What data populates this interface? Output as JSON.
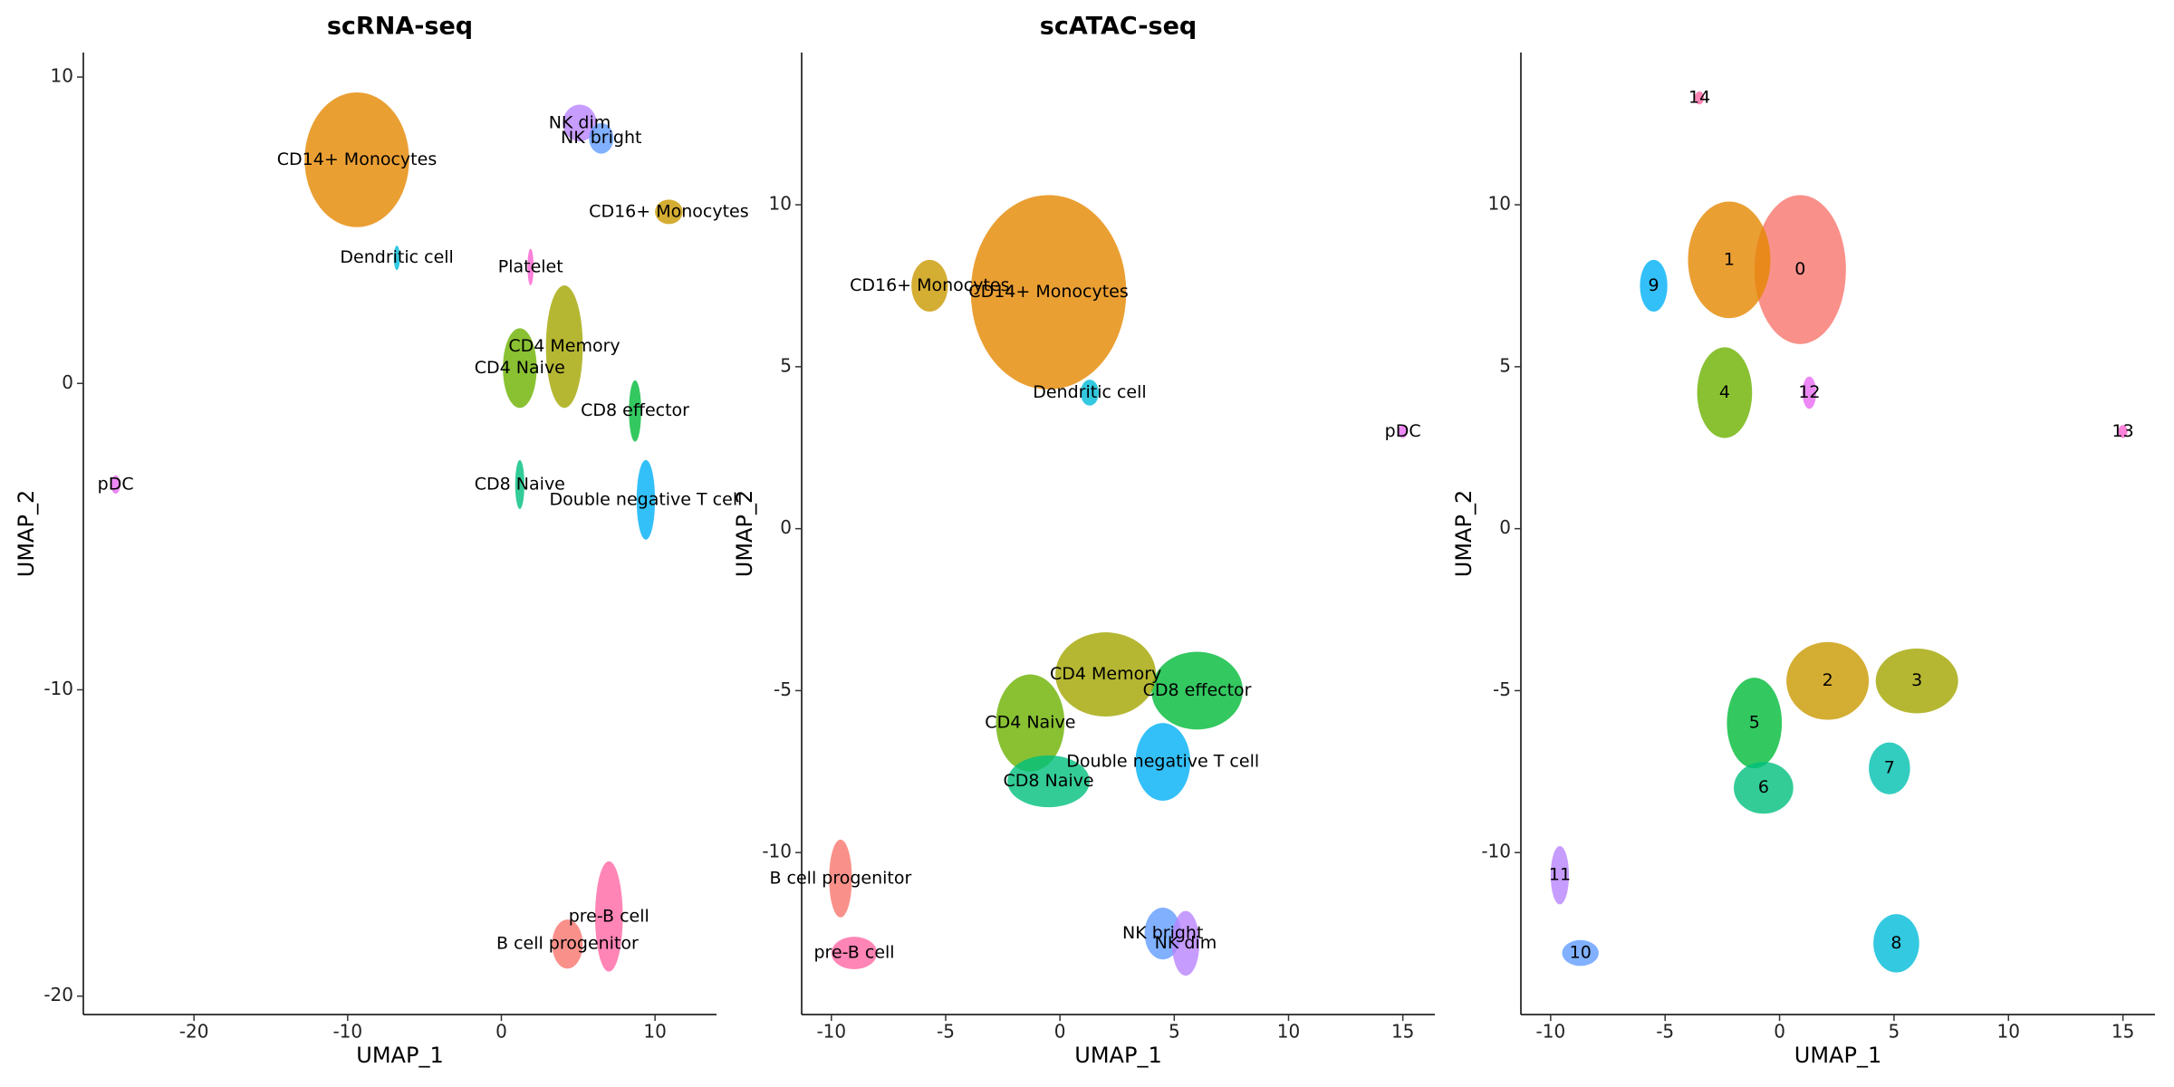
{
  "chart_data": [
    {
      "type": "scatter",
      "title": "scRNA-seq",
      "xlabel": "UMAP_1",
      "ylabel": "UMAP_2",
      "xlim": [
        -27.2,
        14.0
      ],
      "ylim": [
        -20.6,
        10.8
      ],
      "xticks": [
        -20,
        -10,
        0,
        10
      ],
      "yticks": [
        -20,
        -10,
        0,
        10
      ],
      "clusters": [
        {
          "name": "CD14+ Monocytes",
          "color": "#E58700",
          "x": -9.4,
          "y": 7.3,
          "rx": 3.4,
          "ry": 2.2
        },
        {
          "name": "NK dim",
          "color": "#B983FF",
          "x": 5.1,
          "y": 8.5,
          "rx": 1.1,
          "ry": 0.6
        },
        {
          "name": "NK bright",
          "color": "#619CFF",
          "x": 6.5,
          "y": 8.0,
          "rx": 0.8,
          "ry": 0.5
        },
        {
          "name": "CD16+ Monocytes",
          "color": "#C99800",
          "x": 10.9,
          "y": 5.6,
          "rx": 0.9,
          "ry": 0.4
        },
        {
          "name": "Dendritic cell",
          "color": "#00BCD8",
          "x": -6.8,
          "y": 4.1,
          "rx": 0.2,
          "ry": 0.4
        },
        {
          "name": "Platelet",
          "color": "#FD61D1",
          "x": 1.9,
          "y": 3.8,
          "rx": 0.2,
          "ry": 0.6
        },
        {
          "name": "CD4 Memory",
          "color": "#A3A500",
          "x": 4.1,
          "y": 1.2,
          "rx": 1.2,
          "ry": 2.0
        },
        {
          "name": "CD4 Naive",
          "color": "#6BB100",
          "x": 1.2,
          "y": 0.5,
          "rx": 1.1,
          "ry": 1.3
        },
        {
          "name": "CD8 effector",
          "color": "#00BA38",
          "x": 8.7,
          "y": -0.9,
          "rx": 0.4,
          "ry": 1.0
        },
        {
          "name": "CD8 Naive",
          "color": "#00BF7D",
          "x": 1.2,
          "y": -3.3,
          "rx": 0.3,
          "ry": 0.8
        },
        {
          "name": "Double negative T cell",
          "color": "#00B0F6",
          "x": 9.4,
          "y": -3.8,
          "rx": 0.6,
          "ry": 1.3
        },
        {
          "name": "pDC",
          "color": "#E76BF3",
          "x": -25.1,
          "y": -3.3,
          "rx": 0.3,
          "ry": 0.3
        },
        {
          "name": "pre-B cell",
          "color": "#FF67A4",
          "x": 7.0,
          "y": -17.4,
          "rx": 0.9,
          "ry": 1.8
        },
        {
          "name": "B cell progenitor",
          "color": "#F8766D",
          "x": 4.3,
          "y": -18.3,
          "rx": 1.0,
          "ry": 0.8
        }
      ]
    },
    {
      "type": "scatter",
      "title": "scATAC-seq",
      "xlabel": "UMAP_1",
      "ylabel": "UMAP_2",
      "xlim": [
        -11.3,
        16.4
      ],
      "ylim": [
        -15.0,
        14.7
      ],
      "xticks": [
        -10,
        -5,
        0,
        5,
        10,
        15
      ],
      "yticks": [
        -10,
        -5,
        0,
        5,
        10
      ],
      "clusters": [
        {
          "name": "CD14+ Monocytes",
          "color": "#E58700",
          "x": -0.5,
          "y": 7.3,
          "rx": 3.4,
          "ry": 3.0
        },
        {
          "name": "CD16+ Monocytes",
          "color": "#C99800",
          "x": -5.7,
          "y": 7.5,
          "rx": 0.8,
          "ry": 0.8
        },
        {
          "name": "Dendritic cell",
          "color": "#00BCD8",
          "x": 1.3,
          "y": 4.2,
          "rx": 0.4,
          "ry": 0.4
        },
        {
          "name": "pDC",
          "color": "#E76BF3",
          "x": 15.0,
          "y": 3.0,
          "rx": 0.2,
          "ry": 0.2
        },
        {
          "name": "CD8 effector",
          "color": "#00BA38",
          "x": 6.0,
          "y": -5.0,
          "rx": 2.0,
          "ry": 1.2
        },
        {
          "name": "CD4 Memory",
          "color": "#A3A500",
          "x": 2.0,
          "y": -4.5,
          "rx": 2.2,
          "ry": 1.3
        },
        {
          "name": "CD4 Naive",
          "color": "#6BB100",
          "x": -1.3,
          "y": -6.0,
          "rx": 1.5,
          "ry": 1.5
        },
        {
          "name": "Double negative T cell",
          "color": "#00B0F6",
          "x": 4.5,
          "y": -7.2,
          "rx": 1.2,
          "ry": 1.2
        },
        {
          "name": "CD8 Naive",
          "color": "#00BF7D",
          "x": -0.5,
          "y": -7.8,
          "rx": 1.8,
          "ry": 0.8
        },
        {
          "name": "B cell progenitor",
          "color": "#F8766D",
          "x": -9.6,
          "y": -10.8,
          "rx": 0.5,
          "ry": 1.2
        },
        {
          "name": "pre-B cell",
          "color": "#FF67A4",
          "x": -9.0,
          "y": -13.1,
          "rx": 1.0,
          "ry": 0.5
        },
        {
          "name": "NK bright",
          "color": "#619CFF",
          "x": 4.5,
          "y": -12.5,
          "rx": 0.8,
          "ry": 0.8
        },
        {
          "name": "NK dim",
          "color": "#B983FF",
          "x": 5.5,
          "y": -12.8,
          "rx": 0.6,
          "ry": 1.0
        }
      ]
    },
    {
      "type": "scatter",
      "xlabel": "UMAP_1",
      "ylabel": "UMAP_2",
      "xlim": [
        -11.3,
        16.4
      ],
      "ylim": [
        -15.0,
        14.7
      ],
      "xticks": [
        -10,
        -5,
        0,
        5,
        10,
        15
      ],
      "yticks": [
        -10,
        -5,
        0,
        5,
        10
      ],
      "clusters": [
        {
          "name": "0",
          "color": "#F8766D",
          "x": 0.9,
          "y": 8.0,
          "rx": 2.0,
          "ry": 2.3
        },
        {
          "name": "1",
          "color": "#E58700",
          "x": -2.2,
          "y": 8.3,
          "rx": 1.8,
          "ry": 1.8
        },
        {
          "name": "2",
          "color": "#C99800",
          "x": 2.1,
          "y": -4.7,
          "rx": 1.8,
          "ry": 1.2
        },
        {
          "name": "3",
          "color": "#A3A500",
          "x": 6.0,
          "y": -4.7,
          "rx": 1.8,
          "ry": 1.0
        },
        {
          "name": "4",
          "color": "#6BB100",
          "x": -2.4,
          "y": 4.2,
          "rx": 1.2,
          "ry": 1.4
        },
        {
          "name": "5",
          "color": "#00BA38",
          "x": -1.1,
          "y": -6.0,
          "rx": 1.2,
          "ry": 1.4
        },
        {
          "name": "6",
          "color": "#00BF7D",
          "x": -0.7,
          "y": -8.0,
          "rx": 1.3,
          "ry": 0.8
        },
        {
          "name": "7",
          "color": "#00C0AF",
          "x": 4.8,
          "y": -7.4,
          "rx": 0.9,
          "ry": 0.8
        },
        {
          "name": "8",
          "color": "#00BCD8",
          "x": 5.1,
          "y": -12.8,
          "rx": 1.0,
          "ry": 0.9
        },
        {
          "name": "9",
          "color": "#00B0F6",
          "x": -5.5,
          "y": 7.5,
          "rx": 0.6,
          "ry": 0.8
        },
        {
          "name": "10",
          "color": "#619CFF",
          "x": -8.7,
          "y": -13.1,
          "rx": 0.8,
          "ry": 0.4
        },
        {
          "name": "11",
          "color": "#B983FF",
          "x": -9.6,
          "y": -10.7,
          "rx": 0.4,
          "ry": 0.9
        },
        {
          "name": "12",
          "color": "#E76BF3",
          "x": 1.3,
          "y": 4.2,
          "rx": 0.3,
          "ry": 0.5
        },
        {
          "name": "13",
          "color": "#FD61D1",
          "x": 15.0,
          "y": 3.0,
          "rx": 0.2,
          "ry": 0.2
        },
        {
          "name": "14",
          "color": "#FF67A4",
          "x": -3.5,
          "y": 13.3,
          "rx": 0.2,
          "ry": 0.2
        }
      ]
    }
  ]
}
